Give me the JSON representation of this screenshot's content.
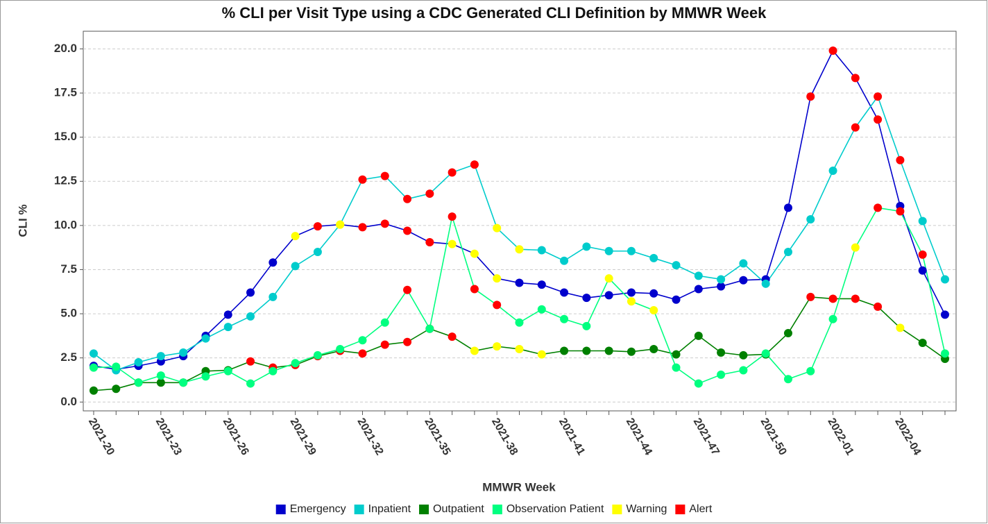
{
  "chart_data": {
    "type": "line",
    "title": "% CLI per Visit Type using a CDC Generated CLI Definition by MMWR Week",
    "x_label": "MMWR Week",
    "y_label": "CLI %",
    "categories": [
      "2021-20",
      null,
      null,
      "2021-23",
      null,
      null,
      "2021-26",
      null,
      null,
      "2021-29",
      null,
      null,
      "2021-32",
      null,
      null,
      "2021-35",
      null,
      null,
      "2021-38",
      null,
      null,
      "2021-41",
      null,
      null,
      "2021-44",
      null,
      null,
      "2021-47",
      null,
      null,
      "2021-50",
      null,
      null,
      "2022-01",
      null,
      null,
      "2022-04",
      null,
      null
    ],
    "ylim": [
      -0.5,
      21
    ],
    "yticks": [
      {
        "value": 0,
        "label": "0.0"
      },
      2.5,
      {
        "value": 5,
        "label": "5.0"
      },
      7.5,
      {
        "value": 10,
        "label": "10.0"
      },
      12.5,
      {
        "value": 15,
        "label": "15.0"
      },
      17.5,
      {
        "value": 20,
        "label": "20.0"
      }
    ],
    "grid": true,
    "legend": "bottom",
    "series": [
      {
        "name": "Emergency",
        "color": "#0000cc",
        "values": [
          2.05,
          1.85,
          2.05,
          2.3,
          2.6,
          3.75,
          4.95,
          6.2,
          7.9,
          9.4,
          9.95,
          10.05,
          9.9,
          10.1,
          9.7,
          9.05,
          8.95,
          8.4,
          7.0,
          6.75,
          6.65,
          6.2,
          5.9,
          6.05,
          6.2,
          6.15,
          5.8,
          6.4,
          6.55,
          6.9,
          6.95,
          11.0,
          17.3,
          19.9,
          18.35,
          16.0,
          11.1,
          7.45,
          4.95
        ],
        "marker_colors": [
          null,
          null,
          null,
          null,
          null,
          null,
          null,
          null,
          null,
          "#ffff00",
          "#ff0000",
          "#ffff00",
          "#ff0000",
          "#ff0000",
          "#ff0000",
          "#ff0000",
          "#ffff00",
          "#ffff00",
          "#ffff00",
          null,
          null,
          null,
          null,
          null,
          null,
          null,
          null,
          null,
          null,
          null,
          null,
          null,
          "#ff0000",
          "#ff0000",
          "#ff0000",
          "#ff0000",
          null,
          null,
          null
        ]
      },
      {
        "name": "Inpatient",
        "color": "#00cccc",
        "values": [
          2.75,
          1.8,
          2.25,
          2.6,
          2.8,
          3.6,
          4.25,
          4.85,
          5.95,
          7.7,
          8.5,
          10.05,
          12.6,
          12.8,
          11.5,
          11.8,
          13.0,
          13.45,
          9.85,
          8.65,
          8.6,
          8.0,
          8.8,
          8.55,
          8.55,
          8.15,
          7.75,
          7.15,
          6.95,
          7.85,
          6.7,
          8.5,
          10.35,
          13.1,
          15.55,
          17.3,
          13.7,
          10.25,
          6.95
        ],
        "marker_colors": [
          null,
          null,
          null,
          null,
          null,
          null,
          null,
          null,
          null,
          null,
          null,
          "#ffff00",
          "#ff0000",
          "#ff0000",
          "#ff0000",
          "#ff0000",
          "#ff0000",
          "#ff0000",
          "#ffff00",
          "#ffff00",
          null,
          null,
          null,
          null,
          null,
          null,
          null,
          null,
          null,
          null,
          null,
          null,
          null,
          null,
          "#ff0000",
          "#ff0000",
          "#ff0000",
          null,
          null
        ]
      },
      {
        "name": "Outpatient",
        "color": "#008000",
        "values": [
          0.65,
          0.75,
          1.1,
          1.1,
          1.1,
          1.75,
          1.8,
          2.3,
          1.95,
          2.1,
          2.6,
          2.9,
          2.75,
          3.25,
          3.4,
          4.15,
          3.7,
          2.9,
          3.15,
          3.0,
          2.7,
          2.9,
          2.9,
          2.9,
          2.85,
          3.0,
          2.7,
          3.75,
          2.8,
          2.65,
          2.7,
          3.9,
          5.95,
          5.85,
          5.85,
          5.4,
          4.2,
          3.35,
          2.45
        ],
        "marker_colors": [
          null,
          null,
          null,
          null,
          null,
          null,
          null,
          "#ff0000",
          "#ff0000",
          "#ff0000",
          "#ff0000",
          "#ff0000",
          "#ff0000",
          "#ff0000",
          "#ff0000",
          "#ff0000",
          "#ff0000",
          "#ffff00",
          "#ffff00",
          "#ffff00",
          "#ffff00",
          null,
          null,
          null,
          null,
          null,
          null,
          null,
          null,
          null,
          null,
          null,
          "#ff0000",
          "#ff0000",
          "#ff0000",
          "#ff0000",
          "#ffff00",
          null,
          null
        ]
      },
      {
        "name": "Observation Patient",
        "color": "#00ff80",
        "values": [
          1.95,
          2.0,
          1.1,
          1.5,
          1.1,
          1.45,
          1.75,
          1.05,
          1.75,
          2.2,
          2.65,
          3.0,
          3.5,
          4.5,
          6.35,
          4.15,
          10.5,
          6.4,
          5.5,
          4.5,
          5.25,
          4.7,
          4.3,
          7.0,
          5.7,
          5.2,
          1.95,
          1.05,
          1.55,
          1.8,
          2.75,
          1.3,
          1.75,
          4.7,
          8.75,
          11.0,
          10.8,
          8.35,
          2.75
        ],
        "marker_colors": [
          null,
          null,
          null,
          null,
          null,
          null,
          null,
          null,
          null,
          null,
          null,
          null,
          null,
          null,
          "#ff0000",
          null,
          "#ff0000",
          "#ff0000",
          "#ff0000",
          null,
          null,
          null,
          null,
          "#ffff00",
          "#ffff00",
          "#ffff00",
          null,
          null,
          null,
          null,
          null,
          null,
          null,
          null,
          "#ffff00",
          "#ff0000",
          "#ff0000",
          "#ff0000",
          null
        ]
      }
    ],
    "flags": [
      {
        "name": "Warning",
        "color": "#ffff00"
      },
      {
        "name": "Alert",
        "color": "#ff0000"
      }
    ]
  }
}
